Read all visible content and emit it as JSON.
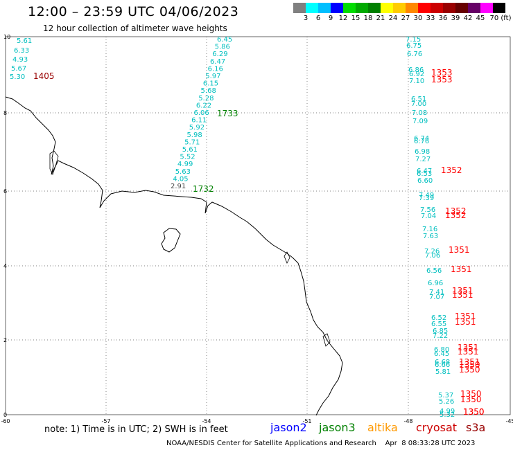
{
  "header": {
    "title": "12:00 – 23:59 UTC 04/06/2023",
    "subtitle": "12 hour collection of altimeter wave heights"
  },
  "colorbar": {
    "colors": [
      "#808080",
      "#00ffff",
      "#00bfff",
      "#0000ff",
      "#00dd00",
      "#00aa00",
      "#008000",
      "#ffff00",
      "#ffcc00",
      "#ff8800",
      "#ff0000",
      "#cc0000",
      "#990000",
      "#660000",
      "#660066",
      "#ff00ff",
      "#000000"
    ],
    "labels": [
      "3",
      "6",
      "9",
      "12",
      "15",
      "18",
      "21",
      "24",
      "27",
      "30",
      "33",
      "36",
      "39",
      "42",
      "45",
      "70 (ft)"
    ]
  },
  "axes": {
    "x_ticks": [
      "-60",
      "-57",
      "-54",
      "-51",
      "-48",
      "-45"
    ],
    "y_ticks": [
      "10",
      "8",
      "6",
      "4",
      "2",
      "0"
    ]
  },
  "tracks": {
    "left": [
      "5.61",
      "6.33",
      "4.93",
      "5.67",
      "5.30"
    ],
    "left_time": "1405",
    "middle": [
      "6.45",
      "5.86",
      "6.29",
      "6.47",
      "6.16",
      "5.97",
      "6.15",
      "5.68",
      "5.28",
      "6.22",
      "6.06",
      "6.11",
      "5.92",
      "5.98",
      "5.71",
      "5.61",
      "5.52",
      "4.99",
      "5.63",
      "4.05",
      "2.91"
    ],
    "middle_times": [
      "1733",
      "1732"
    ],
    "right": [
      "7.15",
      "6.75",
      "6.76",
      "6.86",
      "6.92",
      "7.10",
      "6.51",
      "7.00",
      "7.08",
      "7.09",
      "6.74",
      "6.76",
      "6.98",
      "7.27",
      "6.47",
      "6.53",
      "6.60",
      "7.49",
      "7.39",
      "7.56",
      "7.04",
      "7.16",
      "7.63",
      "7.26",
      "7.06",
      "6.56",
      "6.96",
      "7.41",
      "7.07",
      "6.52",
      "6.55",
      "6.85",
      "7.22",
      "6.80",
      "6.45",
      "6.68",
      "6.66",
      "5.81",
      "5.37",
      "5.26",
      "4.99",
      "5.32"
    ],
    "right_times": [
      "1353",
      "1353",
      "1352",
      "1352",
      "1352",
      "1351",
      "1351",
      "1351",
      "1351",
      "1351",
      "1351",
      "1351",
      "1351",
      "1351",
      "1350",
      "1350",
      "1350",
      "1350",
      "1350",
      "1350"
    ]
  },
  "footer": {
    "note": "note:  1) Time is in UTC; 2) SWH is in feet",
    "satellites": [
      {
        "name": "jason2",
        "color": "#0000ff"
      },
      {
        "name": "jason3",
        "color": "#008000"
      },
      {
        "name": "altika",
        "color": "#ff9900"
      },
      {
        "name": "cryosat",
        "color": "#cc0000"
      },
      {
        "name": "s3a",
        "color": "#990000"
      }
    ],
    "credit": "NOAA/NESDIS Center for Satellite Applications and Research    Apr  8 08:33:28 UTC 2023"
  }
}
